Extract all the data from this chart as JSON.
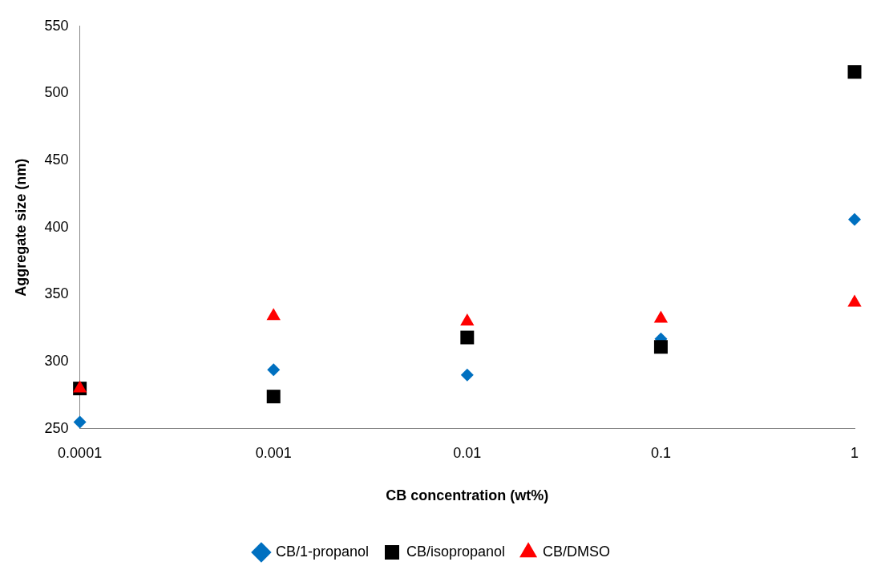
{
  "chart_data": {
    "type": "scatter",
    "xlabel": "CB concentration (wt%)",
    "ylabel": "Aggregate size (nm)",
    "x": [
      0.0001,
      0.001,
      0.01,
      0.1,
      1
    ],
    "series": [
      {
        "name": "CB/1-propanol",
        "color": "#0070c0",
        "marker": "diamond",
        "values": [
          255,
          294,
          290,
          317,
          406
        ]
      },
      {
        "name": "CB/isopropanol",
        "color": "#000000",
        "marker": "square",
        "values": [
          280,
          274,
          318,
          311,
          516
        ]
      },
      {
        "name": "CB/DMSO",
        "color": "#ff0000",
        "marker": "triangle",
        "values": [
          280,
          334,
          330,
          332,
          344
        ]
      }
    ],
    "log": "x",
    "xlim": [
      0.0001,
      1
    ],
    "xticks": [
      0.0001,
      0.001,
      0.01,
      0.1,
      1
    ],
    "ylim": [
      250,
      550
    ],
    "yticks": [
      250,
      300,
      350,
      400,
      450,
      500,
      550
    ],
    "grid": false,
    "legend": "bottom"
  }
}
